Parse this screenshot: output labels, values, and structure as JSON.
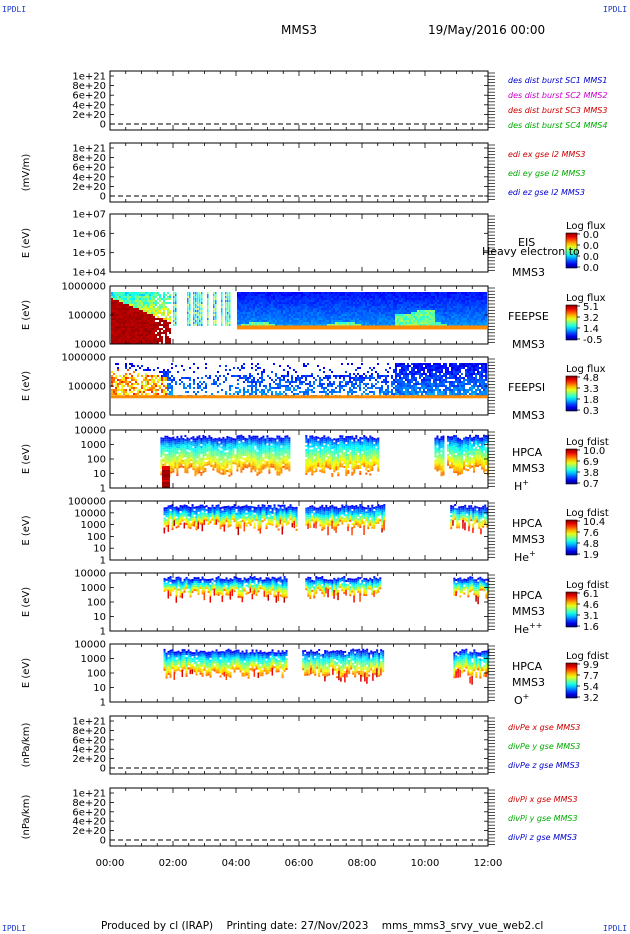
{
  "header": {
    "corner_text": "IPDLI",
    "spacecraft": "MMS3",
    "date": "19/May/2016 00:00"
  },
  "footer": {
    "text": "Produced by cl (IRAP)    Printing date: 27/Nov/2023    mms_mms3_srvy_vue_web2.cl"
  },
  "chart_data": [
    {
      "type": "line",
      "panel": "des_dist",
      "ylabel": "",
      "yticks": [
        "1e+21",
        "8e+20",
        "6e+20",
        "4e+20",
        "2e+20",
        "0"
      ],
      "series": [
        {
          "name": "des dist burst SC1 MMS1",
          "color": "#0000cc"
        },
        {
          "name": "des dist burst SC2 MMS2",
          "color": "#cc00cc"
        },
        {
          "name": "des dist burst SC3 MMS3",
          "color": "#cc0000"
        },
        {
          "name": "des dist burst SC4 MMS4",
          "color": "#00aa00"
        }
      ]
    },
    {
      "type": "line",
      "panel": "edi",
      "ylabel": "(mV/m)",
      "yticks": [
        "1e+21",
        "8e+20",
        "6e+20",
        "4e+20",
        "2e+20",
        "0"
      ],
      "series": [
        {
          "name": "edi ex gse l2 MMS3",
          "color": "#cc0000"
        },
        {
          "name": "edi ey gse l2 MMS3",
          "color": "#00aa00"
        },
        {
          "name": "edi ez gse l2 MMS3",
          "color": "#0000cc"
        }
      ]
    },
    {
      "type": "heatmap",
      "panel": "EIS",
      "ylabel": "E (eV)",
      "yticks": [
        "1e+07",
        "1e+06",
        "1e+05",
        "1e+04"
      ],
      "labels": [
        "EIS",
        "MMS3"
      ],
      "overlay_label": "Heavy electron to",
      "cbar_title": "Log flux",
      "cbar_ticks": [
        "0.0",
        "0.0",
        "0.0",
        "0.0"
      ]
    },
    {
      "type": "heatmap",
      "panel": "FEEPSE",
      "ylabel": "E (eV)",
      "yticks": [
        "1000000",
        "100000",
        "10000"
      ],
      "labels": [
        "FEEPSE",
        "MMS3"
      ],
      "cbar_title": "Log flux",
      "cbar_ticks": [
        "5.1",
        "3.2",
        "1.4",
        "-0.5"
      ]
    },
    {
      "type": "heatmap",
      "panel": "FEEPSI",
      "ylabel": "E (eV)",
      "yticks": [
        "1000000",
        "100000",
        "10000"
      ],
      "labels": [
        "FEEPSI",
        "MMS3"
      ],
      "cbar_title": "Log flux",
      "cbar_ticks": [
        "4.8",
        "3.3",
        "1.8",
        "0.3"
      ]
    },
    {
      "type": "heatmap",
      "panel": "HPCA_H",
      "ylabel": "E (eV)",
      "yticks": [
        "10000",
        "1000",
        "100",
        "10",
        "1"
      ],
      "labels": [
        "HPCA",
        "MMS3"
      ],
      "species": "H",
      "species_sup": "+",
      "cbar_title": "Log fdist",
      "cbar_ticks": [
        "10.0",
        "6.9",
        "3.8",
        "0.7"
      ]
    },
    {
      "type": "heatmap",
      "panel": "HPCA_He",
      "ylabel": "E (eV)",
      "yticks": [
        "100000",
        "10000",
        "1000",
        "100",
        "10",
        "1"
      ],
      "labels": [
        "HPCA",
        "MMS3"
      ],
      "species": "He",
      "species_sup": "+",
      "cbar_title": "Log fdist",
      "cbar_ticks": [
        "10.4",
        "7.6",
        "4.8",
        "1.9"
      ]
    },
    {
      "type": "heatmap",
      "panel": "HPCA_He2",
      "ylabel": "E (eV)",
      "yticks": [
        "10000",
        "1000",
        "100",
        "10",
        "1"
      ],
      "labels": [
        "HPCA",
        "MMS3"
      ],
      "species": "He",
      "species_sup": "++",
      "cbar_title": "Log fdist",
      "cbar_ticks": [
        "6.1",
        "4.6",
        "3.1",
        "1.6"
      ]
    },
    {
      "type": "heatmap",
      "panel": "HPCA_O",
      "ylabel": "E (eV)",
      "yticks": [
        "10000",
        "1000",
        "100",
        "10",
        "1"
      ],
      "labels": [
        "HPCA",
        "MMS3"
      ],
      "species": "O",
      "species_sup": "+",
      "cbar_title": "Log fdist",
      "cbar_ticks": [
        "9.9",
        "7.7",
        "5.4",
        "3.2"
      ]
    },
    {
      "type": "line",
      "panel": "divPe",
      "ylabel": "(nPa/km)",
      "yticks": [
        "1e+21",
        "8e+20",
        "6e+20",
        "4e+20",
        "2e+20",
        "0"
      ],
      "series": [
        {
          "name": "divPe x gse MMS3",
          "color": "#cc0000"
        },
        {
          "name": "divPe y gse MMS3",
          "color": "#00aa00"
        },
        {
          "name": "divPe z gse MMS3",
          "color": "#0000cc"
        }
      ]
    },
    {
      "type": "line",
      "panel": "divPi",
      "ylabel": "(nPa/km)",
      "yticks": [
        "1e+21",
        "8e+20",
        "6e+20",
        "4e+20",
        "2e+20",
        "0"
      ],
      "series": [
        {
          "name": "divPi x gse MMS3",
          "color": "#cc0000"
        },
        {
          "name": "divPi y gse MMS3",
          "color": "#00aa00"
        },
        {
          "name": "divPi z gse MMS3",
          "color": "#0000cc"
        }
      ]
    }
  ],
  "x_axis": {
    "ticks": [
      "00:00",
      "02:00",
      "04:00",
      "06:00",
      "08:00",
      "10:00",
      "12:00"
    ],
    "range_hours": [
      0,
      12
    ]
  }
}
